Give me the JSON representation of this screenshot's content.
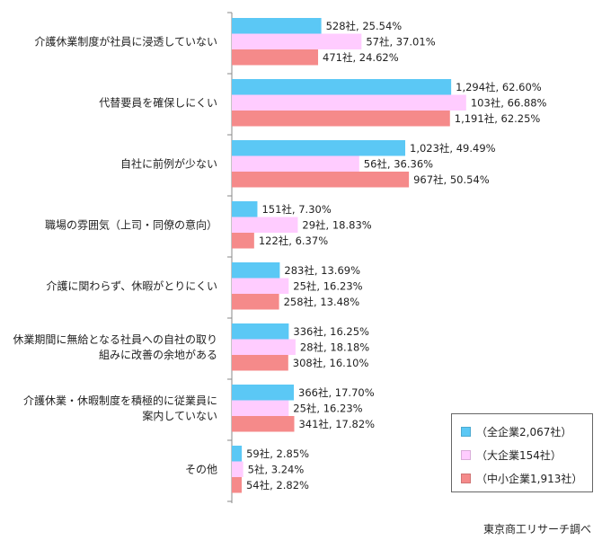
{
  "chart_data": {
    "type": "bar",
    "orientation": "horizontal",
    "categories": [
      [
        "介護休業制度が社員に浸透していない"
      ],
      [
        "代替要員を確保しにくい"
      ],
      [
        "自社に前例が少ない"
      ],
      [
        "職場の雰囲気（上司・同僚の意向）"
      ],
      [
        "介護に関わらず、休暇がとりにくい"
      ],
      [
        "休業期間に無給となる社員への自社の取り",
        "組みに改善の余地がある"
      ],
      [
        "介護休業・休暇制度を積極的に従業員に",
        "案内していない"
      ],
      [
        "その他"
      ]
    ],
    "series": [
      {
        "name": "（全企業2,067社）",
        "color": "#5BC8F5",
        "values": [
          25.54,
          62.6,
          49.49,
          7.3,
          13.69,
          16.25,
          17.7,
          2.85
        ],
        "labels": [
          "528社, 25.54%",
          "1,294社, 62.60%",
          "1,023社, 49.49%",
          "151社, 7.30%",
          "283社, 13.69%",
          "336社, 16.25%",
          "366社, 17.70%",
          "59社, 2.85%"
        ]
      },
      {
        "name": "（大企業154社）",
        "color": "#FFCCFF",
        "values": [
          37.01,
          66.88,
          36.36,
          18.83,
          16.23,
          18.18,
          16.23,
          3.24
        ],
        "labels": [
          "57社, 37.01%",
          "103社, 66.88%",
          "56社, 36.36%",
          "29社, 18.83%",
          "25社, 16.23%",
          "28社, 18.18%",
          "25社, 16.23%",
          "5社, 3.24%"
        ]
      },
      {
        "name": "（中小企業1,913社）",
        "color": "#F58A8A",
        "values": [
          24.62,
          62.25,
          50.54,
          6.37,
          13.48,
          16.1,
          17.82,
          2.82
        ],
        "labels": [
          "471社, 24.62%",
          "1,191社, 62.25%",
          "967社, 50.54%",
          "122社, 6.37%",
          "258社, 13.48%",
          "308社, 16.10%",
          "341社, 17.82%",
          "54社, 2.82%"
        ]
      }
    ],
    "xlim": [
      0,
      100
    ],
    "grid": false,
    "legend_position": "bottom-right"
  },
  "source_note": "東京商工リサーチ調べ"
}
